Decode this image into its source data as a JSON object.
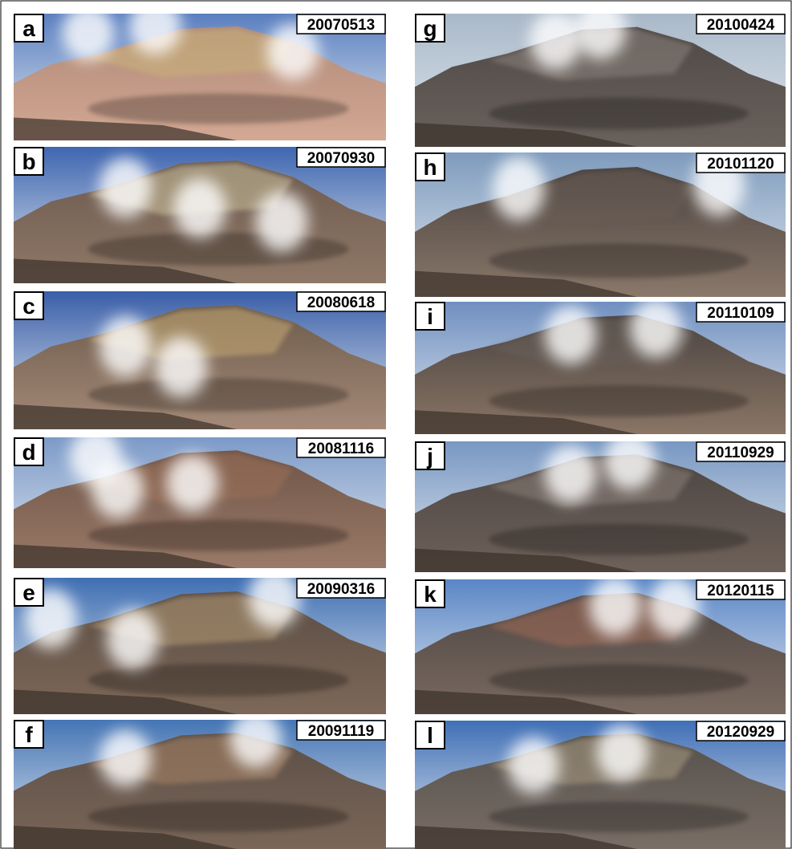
{
  "panels": [
    {
      "letter": "a",
      "date": "20070513"
    },
    {
      "letter": "b",
      "date": "20070930"
    },
    {
      "letter": "c",
      "date": "20080618"
    },
    {
      "letter": "d",
      "date": "20081116"
    },
    {
      "letter": "e",
      "date": "20090316"
    },
    {
      "letter": "f",
      "date": "20091119"
    },
    {
      "letter": "g",
      "date": "20100424"
    },
    {
      "letter": "h",
      "date": "20101120"
    },
    {
      "letter": "i",
      "date": "20110109"
    },
    {
      "letter": "j",
      "date": "20110929"
    },
    {
      "letter": "k",
      "date": "20120115"
    },
    {
      "letter": "l",
      "date": "20120929"
    }
  ]
}
